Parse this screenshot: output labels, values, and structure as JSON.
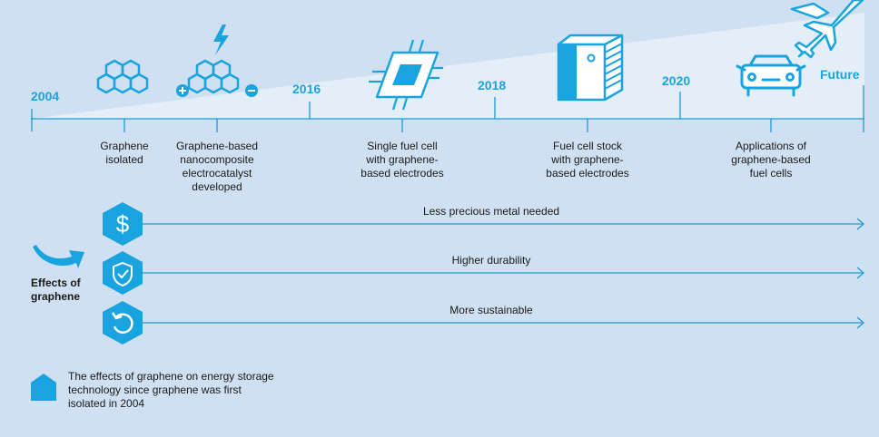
{
  "timeline": {
    "years": [
      {
        "label": "2004"
      },
      {
        "label": "2016"
      },
      {
        "label": "2018"
      },
      {
        "label": "2020"
      },
      {
        "label": "Future"
      }
    ],
    "milestones": [
      {
        "lines": [
          "Graphene",
          "isolated"
        ]
      },
      {
        "lines": [
          "Graphene-based",
          "nanocomposite",
          "electrocatalyst",
          "developed"
        ]
      },
      {
        "lines": [
          "Single fuel cell",
          "with graphene-",
          "based electrodes"
        ]
      },
      {
        "lines": [
          "Fuel cell stock",
          "with graphene-",
          "based electrodes"
        ]
      },
      {
        "lines": [
          "Applications of",
          "graphene-based",
          "fuel cells"
        ]
      }
    ],
    "icons": [
      "graphene-lattice-icon",
      "lightning-icon",
      "plus-icon",
      "minus-icon",
      "fuel-cell-chip-icon",
      "fuel-cell-stack-icon",
      "car-icon",
      "airplane-icon"
    ]
  },
  "effects": {
    "title_lines": [
      "Effects of",
      "graphene"
    ],
    "items": [
      {
        "label": "Less precious metal needed",
        "icon": "dollar-icon"
      },
      {
        "label": "Higher durability",
        "icon": "shield-check-icon"
      },
      {
        "label": "More sustainable",
        "icon": "recycle-arrow-icon"
      }
    ]
  },
  "legend": {
    "lines": [
      "The effects of graphene on energy storage",
      "technology since graphene was first",
      "isolated in 2004"
    ]
  },
  "colors": {
    "accent": "#19a4e0",
    "background": "#cfe0f2",
    "wedge": "#e4eef9",
    "line": "#1c9bd6"
  }
}
